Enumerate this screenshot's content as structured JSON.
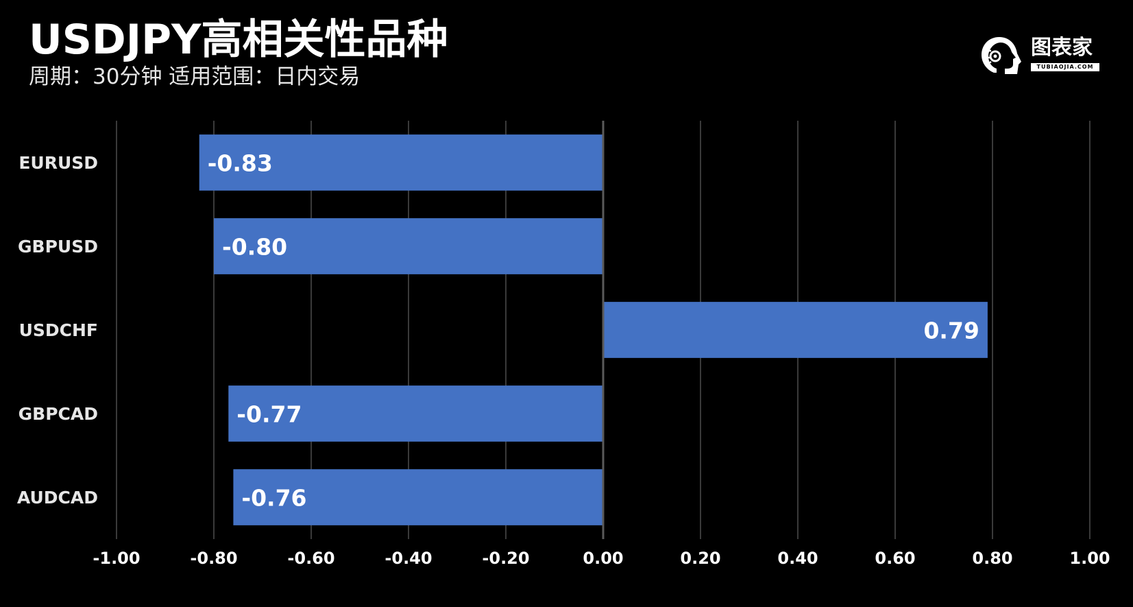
{
  "header": {
    "title": "USDJPY高相关性品种",
    "subtitle": "周期：30分钟  适用范围：日内交易"
  },
  "logo": {
    "text": "图表家",
    "subtext": "TUBIAOJIA.COM"
  },
  "colors": {
    "background": "#000000",
    "bar": "#4472c4",
    "grid": "#3a3a3a",
    "text": "#ffffff"
  },
  "chart_data": {
    "type": "bar",
    "orientation": "horizontal",
    "title": "USDJPY高相关性品种",
    "subtitle": "周期：30分钟  适用范围：日内交易",
    "categories": [
      "EURUSD",
      "GBPUSD",
      "USDCHF",
      "GBPCAD",
      "AUDCAD"
    ],
    "values": [
      -0.83,
      -0.8,
      0.79,
      -0.77,
      -0.76
    ],
    "data_labels": [
      "-0.83",
      "-0.80",
      "0.79",
      "-0.77",
      "-0.76"
    ],
    "xlim": [
      -1.0,
      1.0
    ],
    "xticks": [
      "-1.00",
      "-0.80",
      "-0.60",
      "-0.40",
      "-0.20",
      "0.00",
      "0.20",
      "0.40",
      "0.60",
      "0.80",
      "1.00"
    ],
    "xtick_values": [
      -1.0,
      -0.8,
      -0.6,
      -0.4,
      -0.2,
      0.0,
      0.2,
      0.4,
      0.6,
      0.8,
      1.0
    ],
    "grid": "vertical",
    "legend": "none"
  }
}
